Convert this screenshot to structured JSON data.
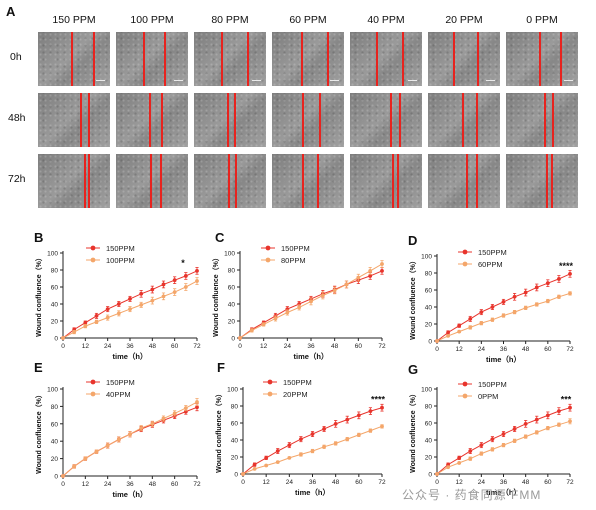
{
  "panel_a": {
    "letter": "A",
    "columns": [
      "150 PPM",
      "100 PPM",
      "80 PPM",
      "60 PPM",
      "40 PPM",
      "20 PPM",
      "0 PPM"
    ],
    "rows": [
      "0h",
      "48h",
      "72h"
    ]
  },
  "watermark": "公众号 · 药食同源 FMM",
  "chart_data": [
    {
      "id": "B",
      "type": "line",
      "letter": "B",
      "x": [
        0,
        6,
        12,
        18,
        24,
        30,
        36,
        42,
        48,
        54,
        60,
        66,
        72
      ],
      "xticks": [
        0,
        12,
        24,
        36,
        48,
        60,
        72
      ],
      "yticks": [
        0,
        20,
        40,
        60,
        80,
        100
      ],
      "ylim": [
        0,
        100
      ],
      "xlim": [
        0,
        72
      ],
      "xlabel": "time（h）",
      "ylabel": "Wound confluence（%）",
      "annotation": "*",
      "series": [
        {
          "name": "150PPM",
          "color": "#e8342c",
          "values": [
            0,
            10,
            18,
            26,
            34,
            40,
            46,
            52,
            57,
            63,
            68,
            73,
            79
          ],
          "err": [
            0,
            2,
            2,
            3,
            3,
            3,
            3,
            4,
            4,
            4,
            4,
            4,
            4
          ]
        },
        {
          "name": "100PPM",
          "color": "#f4a66a",
          "values": [
            0,
            7,
            14,
            19,
            24,
            29,
            34,
            39,
            44,
            49,
            54,
            60,
            67
          ],
          "err": [
            0,
            2,
            2,
            2,
            3,
            3,
            3,
            3,
            4,
            4,
            4,
            4,
            4
          ]
        }
      ]
    },
    {
      "id": "C",
      "type": "line",
      "letter": "C",
      "x": [
        0,
        6,
        12,
        18,
        24,
        30,
        36,
        42,
        48,
        54,
        60,
        66,
        72
      ],
      "xticks": [
        0,
        12,
        24,
        36,
        48,
        60,
        72
      ],
      "yticks": [
        0,
        20,
        40,
        60,
        80,
        100
      ],
      "ylim": [
        0,
        100
      ],
      "xlim": [
        0,
        72
      ],
      "xlabel": "time（h）",
      "ylabel": "Wound confluence（%）",
      "annotation": "",
      "series": [
        {
          "name": "150PPM",
          "color": "#e8342c",
          "values": [
            0,
            10,
            18,
            26,
            34,
            40,
            46,
            52,
            57,
            63,
            68,
            73,
            79
          ],
          "err": [
            0,
            2,
            2,
            3,
            3,
            3,
            3,
            4,
            4,
            4,
            4,
            4,
            4
          ]
        },
        {
          "name": "80PPM",
          "color": "#f4a66a",
          "values": [
            0,
            9,
            16,
            23,
            30,
            36,
            43,
            50,
            56,
            63,
            71,
            79,
            87
          ],
          "err": [
            0,
            2,
            2,
            3,
            3,
            3,
            4,
            4,
            4,
            4,
            4,
            4,
            4
          ]
        }
      ]
    },
    {
      "id": "D",
      "type": "line",
      "letter": "D",
      "x": [
        0,
        6,
        12,
        18,
        24,
        30,
        36,
        42,
        48,
        54,
        60,
        66,
        72
      ],
      "xticks": [
        0,
        12,
        24,
        36,
        48,
        60,
        72
      ],
      "yticks": [
        0,
        20,
        40,
        60,
        80,
        100
      ],
      "ylim": [
        0,
        100
      ],
      "xlim": [
        0,
        72
      ],
      "xlabel": "time（h）",
      "ylabel": "Wound confluence（%）",
      "annotation": "****",
      "series": [
        {
          "name": "150PPM",
          "color": "#e8342c",
          "values": [
            0,
            10,
            18,
            26,
            34,
            40,
            46,
            52,
            57,
            63,
            68,
            73,
            79
          ],
          "err": [
            0,
            2,
            2,
            3,
            3,
            3,
            3,
            4,
            4,
            4,
            4,
            4,
            4
          ]
        },
        {
          "name": "60PPM",
          "color": "#f4a66a",
          "values": [
            0,
            6,
            11,
            16,
            21,
            25,
            30,
            34,
            39,
            43,
            47,
            52,
            56
          ],
          "err": [
            0,
            1,
            1,
            2,
            2,
            2,
            2,
            2,
            2,
            2,
            2,
            2,
            2
          ]
        }
      ]
    },
    {
      "id": "E",
      "type": "line",
      "letter": "E",
      "x": [
        0,
        6,
        12,
        18,
        24,
        30,
        36,
        42,
        48,
        54,
        60,
        66,
        72
      ],
      "xticks": [
        0,
        12,
        24,
        36,
        48,
        60,
        72
      ],
      "yticks": [
        0,
        20,
        40,
        60,
        80,
        100
      ],
      "ylim": [
        0,
        100
      ],
      "xlim": [
        0,
        72
      ],
      "xlabel": "time（h）",
      "ylabel": "Wound confluence（%）",
      "annotation": "",
      "series": [
        {
          "name": "150PPM",
          "color": "#e8342c",
          "values": [
            0,
            11,
            20,
            28,
            35,
            42,
            48,
            54,
            59,
            64,
            69,
            74,
            79
          ],
          "err": [
            0,
            2,
            2,
            2,
            3,
            3,
            3,
            3,
            3,
            3,
            3,
            3,
            4
          ]
        },
        {
          "name": "40PPM",
          "color": "#f4a66a",
          "values": [
            0,
            11,
            20,
            28,
            35,
            42,
            48,
            55,
            60,
            66,
            72,
            78,
            85
          ],
          "err": [
            0,
            2,
            2,
            2,
            3,
            3,
            3,
            3,
            3,
            3,
            3,
            3,
            4
          ]
        }
      ]
    },
    {
      "id": "F",
      "type": "line",
      "letter": "F",
      "x": [
        0,
        6,
        12,
        18,
        24,
        30,
        36,
        42,
        48,
        54,
        60,
        66,
        72
      ],
      "xticks": [
        0,
        12,
        24,
        36,
        48,
        60,
        72
      ],
      "yticks": [
        0,
        20,
        40,
        60,
        80,
        100
      ],
      "ylim": [
        0,
        100
      ],
      "xlim": [
        0,
        72
      ],
      "xlabel": "time（h）",
      "ylabel": "Wound confluence（%）",
      "annotation": "****",
      "series": [
        {
          "name": "150PPM",
          "color": "#e8342c",
          "values": [
            0,
            11,
            19,
            27,
            34,
            41,
            47,
            53,
            59,
            64,
            69,
            74,
            78
          ],
          "err": [
            0,
            2,
            2,
            3,
            3,
            3,
            3,
            3,
            4,
            4,
            4,
            4,
            4
          ]
        },
        {
          "name": "20PPM",
          "color": "#f4a66a",
          "values": [
            0,
            6,
            10,
            14,
            19,
            23,
            27,
            32,
            36,
            41,
            46,
            51,
            56
          ],
          "err": [
            0,
            1,
            1,
            1,
            1,
            2,
            2,
            2,
            2,
            2,
            2,
            2,
            2
          ]
        }
      ]
    },
    {
      "id": "G",
      "type": "line",
      "letter": "G",
      "x": [
        0,
        6,
        12,
        18,
        24,
        30,
        36,
        42,
        48,
        54,
        60,
        66,
        72
      ],
      "xticks": [
        0,
        12,
        24,
        36,
        48,
        60,
        72
      ],
      "yticks": [
        0,
        20,
        40,
        60,
        80,
        100
      ],
      "ylim": [
        0,
        100
      ],
      "xlim": [
        0,
        72
      ],
      "xlabel": "time（h）",
      "ylabel": "Wound confluence（%）",
      "annotation": "***",
      "series": [
        {
          "name": "150PPM",
          "color": "#e8342c",
          "values": [
            0,
            11,
            19,
            27,
            34,
            41,
            47,
            53,
            59,
            64,
            69,
            74,
            78
          ],
          "err": [
            0,
            2,
            2,
            3,
            3,
            3,
            3,
            3,
            4,
            4,
            4,
            4,
            4
          ]
        },
        {
          "name": "0PPM",
          "color": "#f4a66a",
          "values": [
            0,
            8,
            13,
            18,
            24,
            29,
            34,
            39,
            44,
            49,
            54,
            58,
            62
          ],
          "err": [
            0,
            1,
            1,
            2,
            2,
            2,
            2,
            2,
            2,
            2,
            2,
            2,
            3
          ]
        }
      ]
    }
  ]
}
